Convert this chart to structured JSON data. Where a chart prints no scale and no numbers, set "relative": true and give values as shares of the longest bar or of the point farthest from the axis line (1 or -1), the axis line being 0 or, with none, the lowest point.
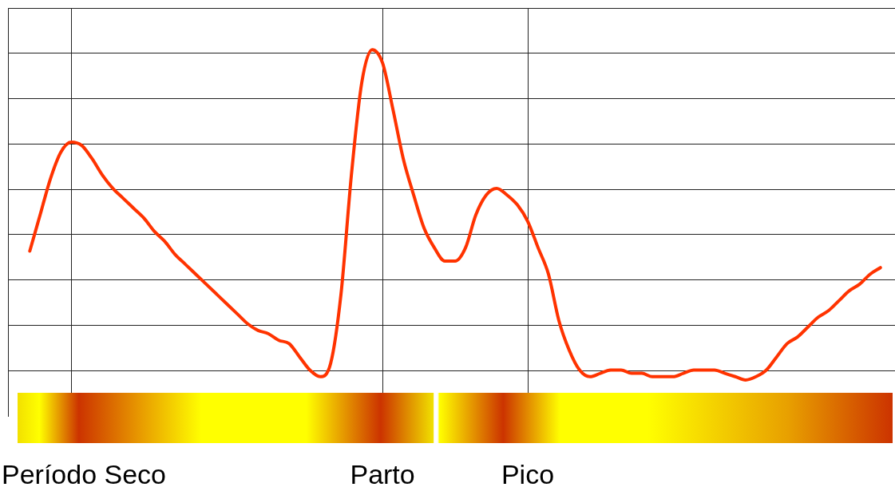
{
  "chart_data": {
    "type": "line",
    "relative": true,
    "grid": true,
    "legend": false,
    "marker": "none",
    "line_style": "solid",
    "categories": [
      null,
      null,
      null,
      null,
      "Período Seco",
      null,
      null,
      null,
      null,
      null,
      null,
      null,
      null,
      null,
      null,
      null,
      null,
      null,
      null,
      null,
      null,
      null,
      null,
      null,
      null,
      null,
      null,
      null,
      null,
      null,
      null,
      null,
      null,
      null,
      "Parto",
      null,
      null,
      null,
      null,
      null,
      null,
      null,
      null,
      null,
      null,
      null,
      null,
      null,
      "Pico",
      null,
      null,
      null,
      null,
      null,
      null,
      null,
      null,
      null,
      null,
      null,
      null,
      null,
      null,
      null,
      null,
      null,
      null,
      null,
      null,
      null,
      null,
      null,
      null,
      null,
      null,
      null,
      null,
      null,
      null,
      null,
      null,
      null,
      null
    ],
    "series": [
      {
        "color": "#ff3300",
        "values": [
          0.39,
          0.5,
          0.61,
          0.69,
          0.72,
          0.71,
          0.67,
          0.62,
          0.58,
          0.55,
          0.52,
          0.49,
          0.45,
          0.42,
          0.38,
          0.35,
          0.32,
          0.29,
          0.26,
          0.23,
          0.2,
          0.17,
          0.15,
          0.14,
          0.12,
          0.11,
          0.07,
          0.03,
          0.01,
          0.05,
          0.26,
          0.62,
          0.9,
          1,
          0.96,
          0.82,
          0.67,
          0.56,
          0.46,
          0.4,
          0.36,
          0.36,
          0.4,
          0.5,
          0.56,
          0.58,
          0.56,
          0.53,
          0.48,
          0.4,
          0.32,
          0.18,
          0.09,
          0.03,
          0.01,
          0.02,
          0.03,
          0.03,
          0.02,
          0.02,
          0.01,
          0.01,
          0.01,
          0.02,
          0.03,
          0.03,
          0.03,
          0.02,
          0.01,
          0,
          0.01,
          0.03,
          0.07,
          0.11,
          0.13,
          0.16,
          0.19,
          0.21,
          0.24,
          0.27,
          0.29,
          0.32,
          0.34
        ]
      }
    ]
  }
}
